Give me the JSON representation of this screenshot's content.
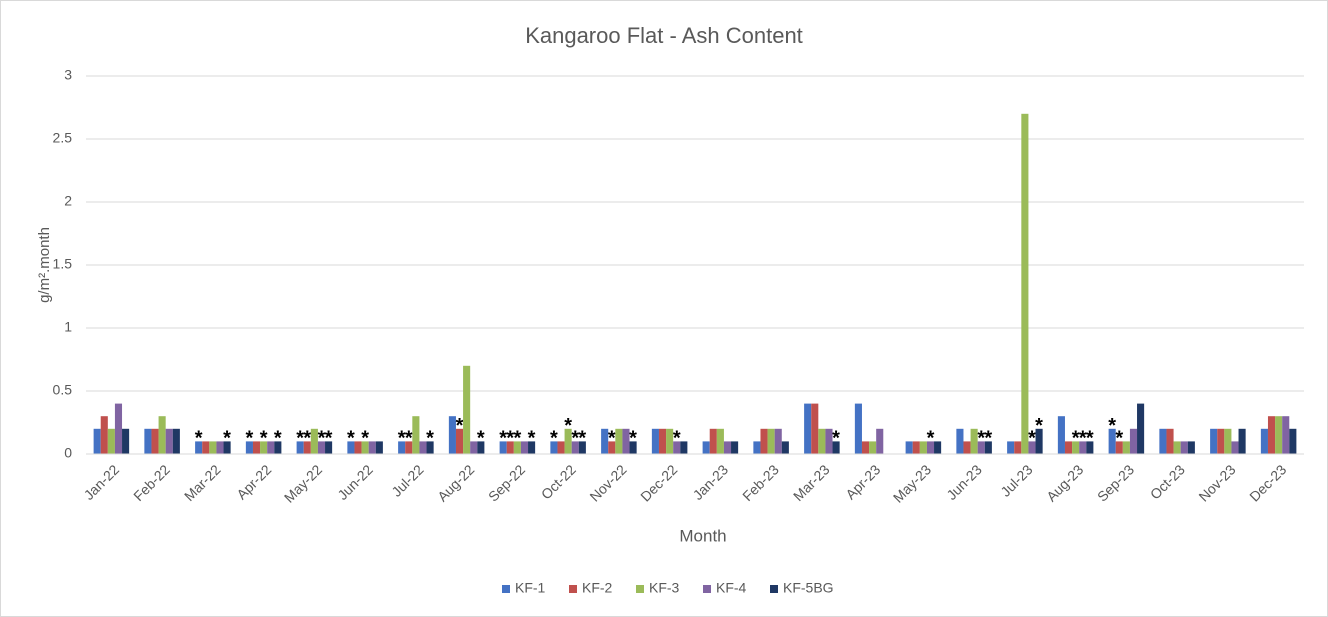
{
  "chart_data": {
    "type": "bar",
    "title": "Kangaroo Flat - Ash Content",
    "x_label": "Month",
    "y_label": "g/m².month",
    "categories": [
      "Jan-22",
      "Feb-22",
      "Mar-22",
      "Apr-22",
      "May-22",
      "Jun-22",
      "Jul-22",
      "Aug-22",
      "Sep-22",
      "Oct-22",
      "Nov-22",
      "Dec-22",
      "Jan-23",
      "Feb-23",
      "Mar-23",
      "Apr-23",
      "May-23",
      "Jun-23",
      "Jul-23",
      "Aug-23",
      "Sep-23",
      "Oct-23",
      "Nov-23",
      "Dec-23"
    ],
    "series": [
      {
        "name": "KF-1",
        "color": "#4472c4",
        "values": [
          0.2,
          0.2,
          0.1,
          0.1,
          0.1,
          0.1,
          0.1,
          0.3,
          0.1,
          0.1,
          0.2,
          0.2,
          0.1,
          0.1,
          0.4,
          0.4,
          0.1,
          0.2,
          0.1,
          0.3,
          0.2,
          0.2,
          0.2,
          0.2
        ],
        "notes": [
          null,
          null,
          "*",
          "*",
          "*",
          "*",
          "*",
          null,
          "*",
          "*",
          null,
          null,
          null,
          null,
          null,
          null,
          null,
          null,
          null,
          null,
          "*",
          null,
          null,
          null
        ]
      },
      {
        "name": "KF-2",
        "color": "#c0504d",
        "values": [
          0.3,
          0.2,
          0.1,
          0.1,
          0.1,
          0.1,
          0.1,
          0.2,
          0.1,
          0.1,
          0.1,
          0.2,
          0.2,
          0.2,
          0.4,
          0.1,
          0.1,
          0.1,
          0.1,
          0.1,
          0.1,
          0.2,
          0.2,
          0.3
        ],
        "notes": [
          null,
          null,
          null,
          null,
          "*",
          null,
          "*",
          "*",
          "*",
          null,
          "*",
          null,
          null,
          null,
          null,
          null,
          null,
          null,
          null,
          null,
          "*",
          null,
          null,
          null
        ]
      },
      {
        "name": "KF-3",
        "color": "#9bbb59",
        "values": [
          0.2,
          0.3,
          0.1,
          0.1,
          0.2,
          0.1,
          0.3,
          0.7,
          0.1,
          0.2,
          0.2,
          0.2,
          0.2,
          0.2,
          0.2,
          0.1,
          0.1,
          0.2,
          2.7,
          0.1,
          0.1,
          0.1,
          0.2,
          0.3
        ],
        "notes": [
          null,
          null,
          null,
          "*",
          null,
          "*",
          null,
          null,
          "*",
          "*",
          null,
          null,
          null,
          null,
          null,
          null,
          null,
          null,
          null,
          "*",
          null,
          null,
          null,
          null
        ]
      },
      {
        "name": "KF-4",
        "color": "#8064a2",
        "values": [
          0.4,
          0.2,
          0.1,
          0.1,
          0.1,
          0.1,
          0.1,
          0.1,
          0.1,
          0.1,
          0.2,
          0.1,
          0.1,
          0.2,
          0.2,
          0.2,
          0.1,
          0.1,
          0.1,
          0.1,
          0.2,
          0.1,
          0.1,
          0.3
        ],
        "notes": [
          null,
          null,
          null,
          null,
          "*",
          null,
          null,
          null,
          null,
          "*",
          null,
          "*",
          null,
          null,
          null,
          null,
          "*",
          "*",
          "*",
          "*",
          null,
          null,
          null,
          null
        ]
      },
      {
        "name": "KF-5BG",
        "color": "#1f3864",
        "values": [
          0.2,
          0.2,
          0.1,
          0.1,
          0.1,
          0.1,
          0.1,
          0.1,
          0.1,
          0.1,
          0.1,
          0.1,
          0.1,
          0.1,
          0.1,
          null,
          0.1,
          0.1,
          0.2,
          0.1,
          0.4,
          0.1,
          0.2,
          0.2
        ],
        "notes": [
          null,
          null,
          "*",
          "*",
          "*",
          null,
          "*",
          "*",
          "*",
          "*",
          "*",
          null,
          null,
          null,
          "*",
          null,
          null,
          "*",
          "*",
          "*",
          null,
          null,
          null,
          null
        ]
      }
    ],
    "ylim": [
      0,
      3
    ],
    "yticks": [
      0,
      0.5,
      1,
      1.5,
      2,
      2.5,
      3
    ],
    "grid": true,
    "legend": "bottom"
  }
}
